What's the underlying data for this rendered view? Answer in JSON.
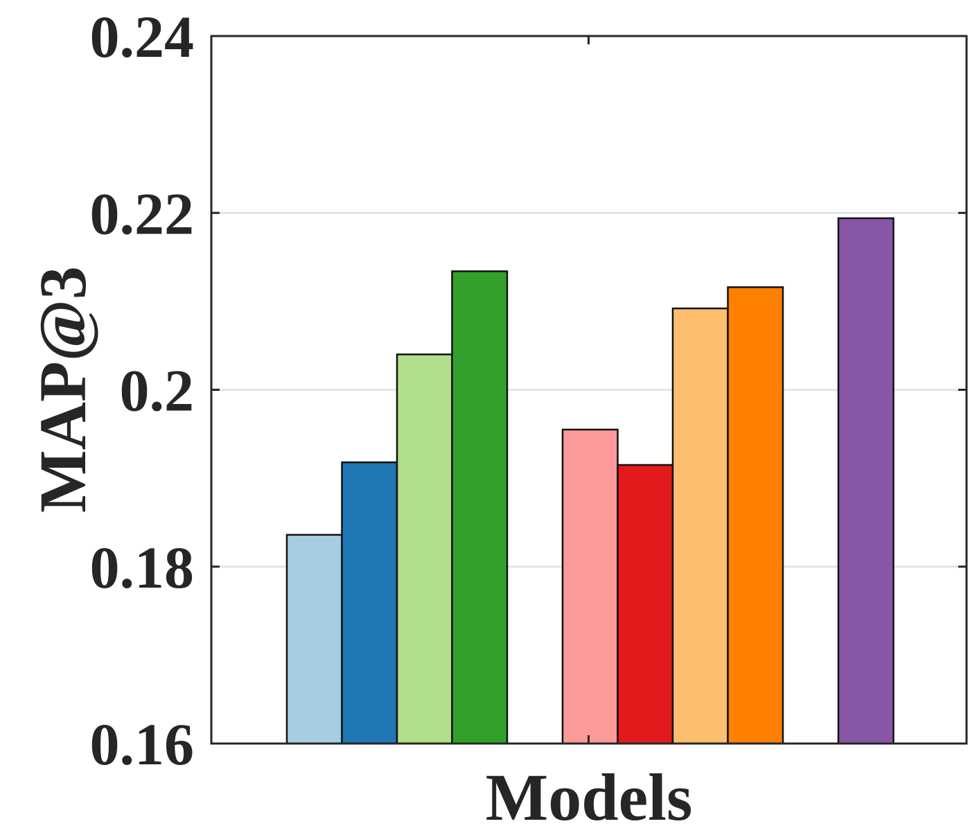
{
  "chart_data": {
    "type": "bar",
    "xlabel": "Models",
    "ylabel": "MAP@3",
    "ylim": [
      0.16,
      0.24
    ],
    "yticks": [
      0.16,
      0.18,
      0.2,
      0.22,
      0.24
    ],
    "ytick_labels": [
      "0.16",
      "0.18",
      "0.2",
      "0.22",
      "0.24"
    ],
    "grid": true,
    "legend": "none",
    "groups": [
      {
        "bars": [
          {
            "value": 0.1836,
            "color": "#a6cee3"
          },
          {
            "value": 0.1918,
            "color": "#1f78b4"
          },
          {
            "value": 0.204,
            "color": "#b2df8a"
          },
          {
            "value": 0.2134,
            "color": "#33a02c"
          }
        ]
      },
      {
        "bars": [
          {
            "value": 0.1955,
            "color": "#fb9a99"
          },
          {
            "value": 0.1915,
            "color": "#e31a1c"
          },
          {
            "value": 0.2092,
            "color": "#fdbf6f"
          },
          {
            "value": 0.2116,
            "color": "#ff7f00"
          }
        ]
      },
      {
        "bars": [
          {
            "value": 0.2194,
            "color": "#8856a7"
          }
        ]
      }
    ]
  }
}
